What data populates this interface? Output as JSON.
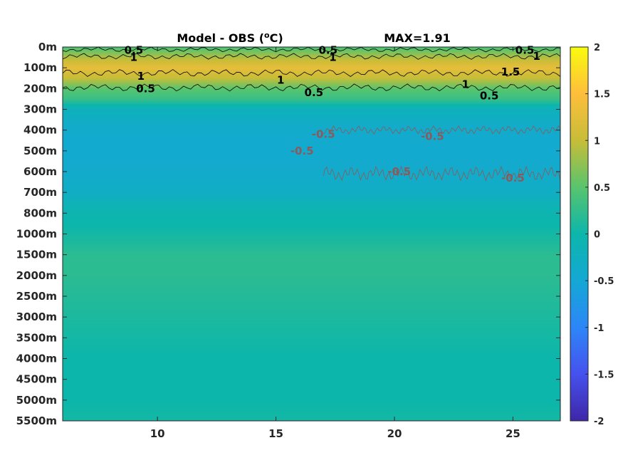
{
  "chart_data": {
    "type": "heatmap",
    "title": "Model - OBS (°C)",
    "title_parts": {
      "prefix": "Model - OBS (",
      "superscript": "o",
      "suffix": "C)"
    },
    "annotation": "MAX=1.91",
    "xlabel": "",
    "ylabel": "",
    "xlim": [
      6,
      27
    ],
    "x_ticks": [
      10,
      15,
      20,
      25
    ],
    "y_tick_labels": [
      "0m",
      "100m",
      "200m",
      "300m",
      "400m",
      "500m",
      "600m",
      "700m",
      "800m",
      "1000m",
      "1500m",
      "2000m",
      "2500m",
      "3000m",
      "3500m",
      "4000m",
      "4500m",
      "5000m",
      "5500m"
    ],
    "y_depths": [
      0,
      100,
      200,
      300,
      400,
      500,
      600,
      700,
      800,
      1000,
      1500,
      2000,
      2500,
      3000,
      3500,
      4000,
      4500,
      5000,
      5500
    ],
    "colorbar": {
      "range": [
        -2,
        2
      ],
      "ticks": [
        -2,
        -1.5,
        -1,
        -0.5,
        0,
        0.5,
        1,
        1.5,
        2
      ],
      "tick_labels": [
        "-2",
        "-1.5",
        "-1",
        "-0.5",
        "0",
        "0.5",
        "1",
        "1.5",
        "2"
      ],
      "colormap": "parula"
    },
    "depth_profile_mean_C": [
      {
        "depth": 0,
        "value": 0.4
      },
      {
        "depth": 50,
        "value": 0.9
      },
      {
        "depth": 100,
        "value": 1.3
      },
      {
        "depth": 150,
        "value": 1.0
      },
      {
        "depth": 200,
        "value": 0.5
      },
      {
        "depth": 250,
        "value": 0.3
      },
      {
        "depth": 300,
        "value": -0.2
      },
      {
        "depth": 400,
        "value": -0.4
      },
      {
        "depth": 500,
        "value": -0.45
      },
      {
        "depth": 600,
        "value": -0.4
      },
      {
        "depth": 700,
        "value": -0.3
      },
      {
        "depth": 800,
        "value": -0.05
      },
      {
        "depth": 1000,
        "value": 0.05
      },
      {
        "depth": 1500,
        "value": 0.2
      },
      {
        "depth": 2000,
        "value": 0.2
      },
      {
        "depth": 2500,
        "value": 0.15
      },
      {
        "depth": 3000,
        "value": 0.1
      },
      {
        "depth": 3500,
        "value": 0.05
      },
      {
        "depth": 4000,
        "value": 0.0
      },
      {
        "depth": 4500,
        "value": 0.0
      },
      {
        "depth": 5000,
        "value": 0.0
      },
      {
        "depth": 5500,
        "value": 0.05
      }
    ],
    "contours": [
      {
        "level": 0.5,
        "color": "#000000",
        "label": "0.5"
      },
      {
        "level": 1,
        "color": "#000000",
        "label": "1"
      },
      {
        "level": 1.5,
        "color": "#000000",
        "label": "1.5"
      },
      {
        "level": -0.5,
        "color": "#8c5a5a",
        "label": "-0.5"
      }
    ],
    "contour_labels": [
      {
        "text": "0.5",
        "x": 9.0,
        "depth": 15,
        "level": 0.5
      },
      {
        "text": "1",
        "x": 9.0,
        "depth": 50,
        "level": 1
      },
      {
        "text": "0.5",
        "x": 17.2,
        "depth": 15,
        "level": 0.5
      },
      {
        "text": "1",
        "x": 17.4,
        "depth": 50,
        "level": 1
      },
      {
        "text": "0.5",
        "x": 25.5,
        "depth": 15,
        "level": 0.5
      },
      {
        "text": "1",
        "x": 26.0,
        "depth": 45,
        "level": 1
      },
      {
        "text": "1",
        "x": 9.3,
        "depth": 140,
        "level": 1
      },
      {
        "text": "0.5",
        "x": 9.5,
        "depth": 200,
        "level": 0.5
      },
      {
        "text": "1",
        "x": 15.2,
        "depth": 160,
        "level": 1
      },
      {
        "text": "0.5",
        "x": 16.6,
        "depth": 220,
        "level": 0.5
      },
      {
        "text": "1.5",
        "x": 24.9,
        "depth": 120,
        "level": 1.5
      },
      {
        "text": "1",
        "x": 23.0,
        "depth": 180,
        "level": 1
      },
      {
        "text": "0.5",
        "x": 24.0,
        "depth": 235,
        "level": 0.5
      },
      {
        "text": "-0.5",
        "x": 17.0,
        "depth": 420,
        "level": -0.5
      },
      {
        "text": "-0.5",
        "x": 16.1,
        "depth": 500,
        "level": -0.5
      },
      {
        "text": "-0.5",
        "x": 21.6,
        "depth": 430,
        "level": -0.5
      },
      {
        "text": "-0.5",
        "x": 20.2,
        "depth": 600,
        "level": -0.5
      },
      {
        "text": "-0.5",
        "x": 25.0,
        "depth": 630,
        "level": -0.5
      }
    ]
  }
}
